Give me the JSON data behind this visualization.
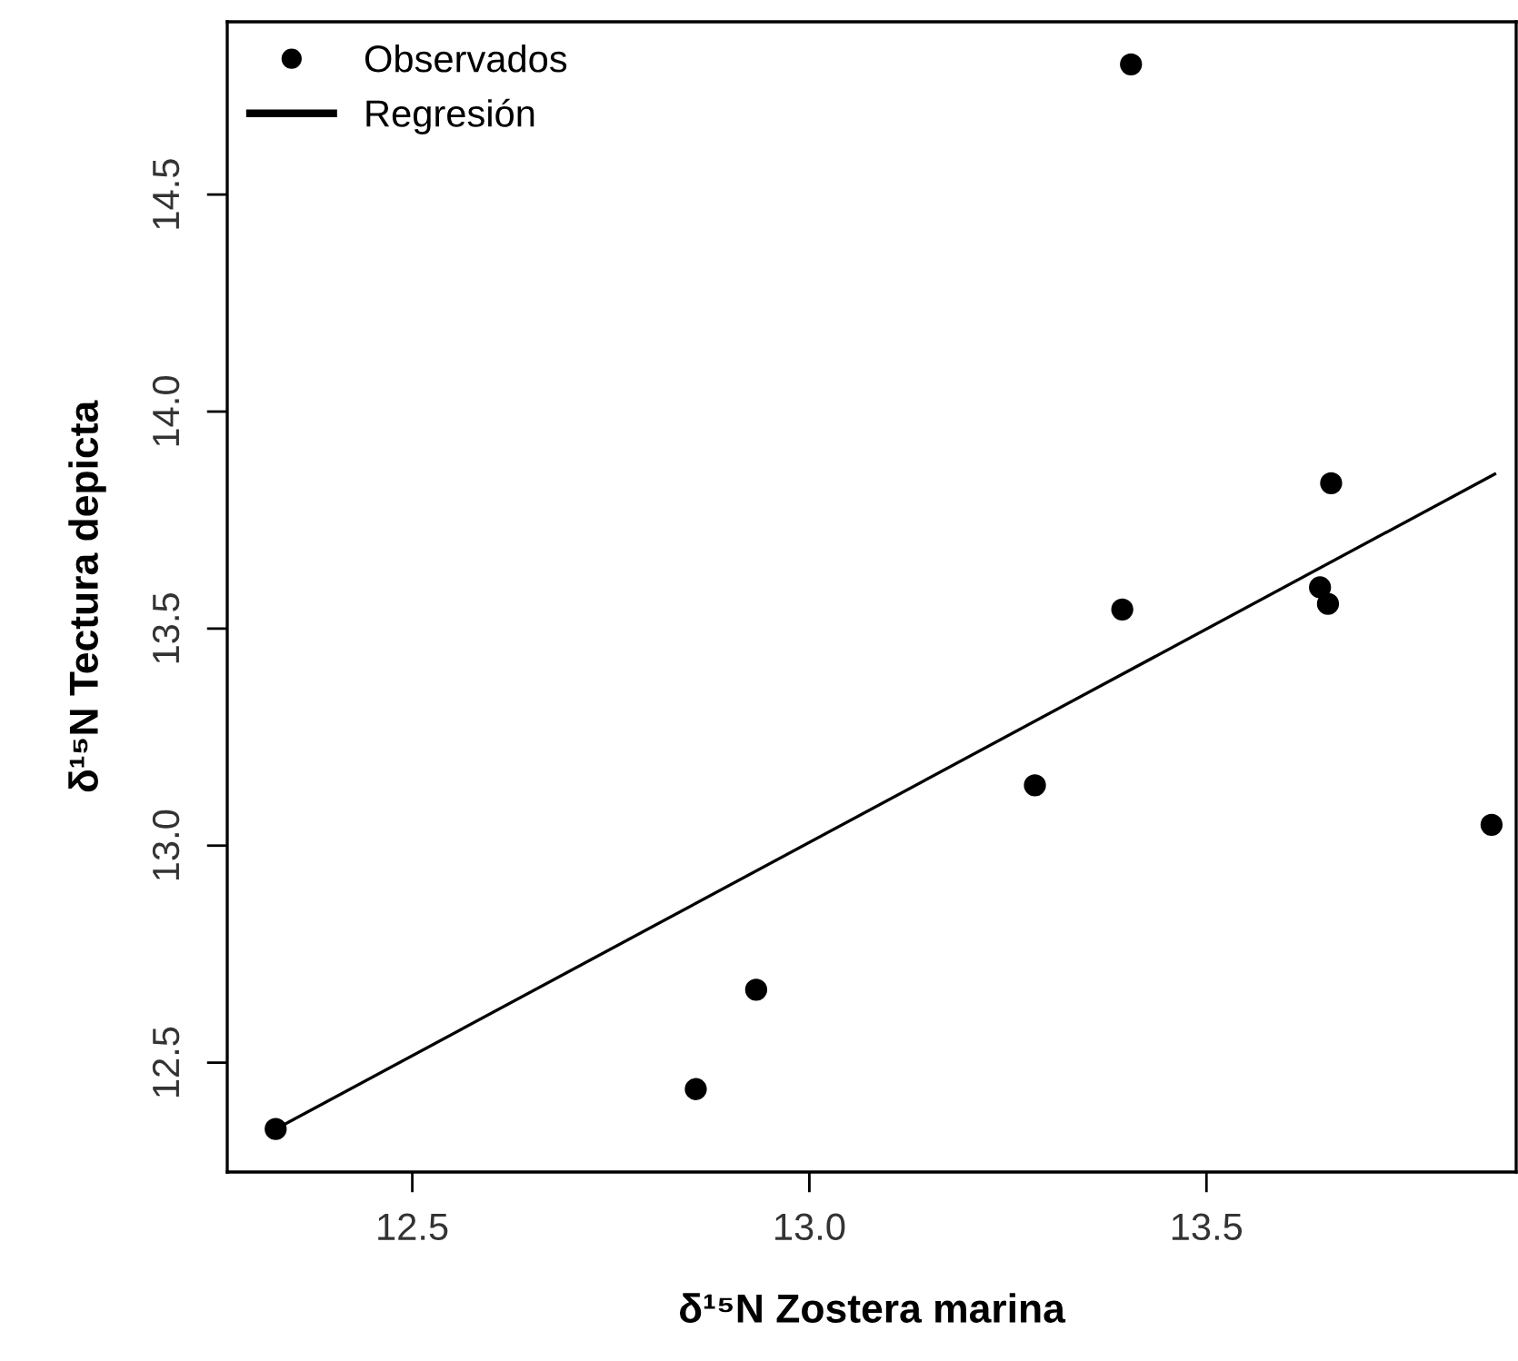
{
  "chart_data": {
    "type": "scatter",
    "xlabel": "δ¹⁵N Zostera marina",
    "ylabel": "δ¹⁵N Tectura depicta",
    "series": [
      {
        "name": "Observados",
        "color": "#000000",
        "marker": "circle",
        "x": [
          12.328,
          12.857,
          12.933,
          13.284,
          13.394,
          13.405,
          13.643,
          13.653,
          13.657,
          13.859
        ],
        "values": [
          12.347,
          12.439,
          12.668,
          13.139,
          13.544,
          14.8,
          13.595,
          13.557,
          13.835,
          13.048
        ]
      },
      {
        "name": "Regresión",
        "type": "line",
        "color": "#000000",
        "line_style": "solid",
        "x": [
          12.328,
          13.863
        ],
        "values": [
          12.347,
          13.856
        ]
      }
    ],
    "xlim": [
      12.267,
      13.89
    ],
    "ylim": [
      12.248,
      14.898
    ],
    "xticks": [
      {
        "value": 12.5,
        "label": "12.5"
      },
      {
        "value": 13.0,
        "label": "13.0"
      },
      {
        "value": 13.5,
        "label": "13.5"
      }
    ],
    "yticks": [
      {
        "value": 12.5,
        "label": "12.5"
      },
      {
        "value": 13.0,
        "label": "13.0"
      },
      {
        "value": 13.5,
        "label": "13.5"
      },
      {
        "value": 14.0,
        "label": "14.0"
      },
      {
        "value": 14.5,
        "label": "14.5"
      }
    ],
    "legend": "top left",
    "grid": false
  }
}
